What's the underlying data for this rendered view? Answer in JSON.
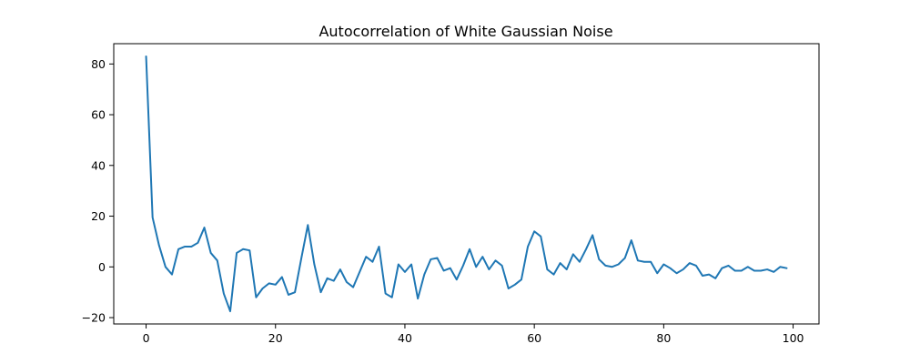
{
  "chart_data": {
    "type": "line",
    "title": "Autocorrelation of White Gaussian Noise",
    "xlabel": "",
    "ylabel": "",
    "xlim": [
      -5,
      104
    ],
    "ylim": [
      -22.5,
      88
    ],
    "xticks": [
      0,
      20,
      40,
      60,
      80,
      100
    ],
    "yticks": [
      -20,
      0,
      20,
      40,
      60,
      80
    ],
    "grid": false,
    "series": [
      {
        "color": "#1f77b4",
        "x": [
          0,
          1,
          2,
          3,
          4,
          5,
          6,
          7,
          8,
          9,
          10,
          11,
          12,
          13,
          14,
          15,
          16,
          17,
          18,
          19,
          20,
          21,
          22,
          23,
          24,
          25,
          26,
          27,
          28,
          29,
          30,
          31,
          32,
          33,
          34,
          35,
          36,
          37,
          38,
          39,
          40,
          41,
          42,
          43,
          44,
          45,
          46,
          47,
          48,
          49,
          50,
          51,
          52,
          53,
          54,
          55,
          56,
          57,
          58,
          59,
          60,
          61,
          62,
          63,
          64,
          65,
          66,
          67,
          68,
          69,
          70,
          71,
          72,
          73,
          74,
          75,
          76,
          77,
          78,
          79,
          80,
          81,
          82,
          83,
          84,
          85,
          86,
          87,
          88,
          89,
          90,
          91,
          92,
          93,
          94,
          95,
          96,
          97,
          98,
          99
        ],
        "values": [
          83,
          19.5,
          8.5,
          0,
          -3,
          7,
          8,
          8,
          9.5,
          15.5,
          5.5,
          2.5,
          -10.5,
          -17.5,
          5.5,
          7,
          6.5,
          -12,
          -8.5,
          -6.5,
          -7,
          -4,
          -11,
          -10,
          3.5,
          16.5,
          1,
          -10,
          -4.5,
          -5.5,
          -1,
          -6,
          -8,
          -2,
          4,
          2,
          8,
          -10.5,
          -12,
          1,
          -2,
          1,
          -12.5,
          -3,
          3,
          3.5,
          -1.5,
          -0.5,
          -5,
          0.5,
          7,
          0,
          4,
          -1,
          2.5,
          0.5,
          -8.5,
          -7,
          -5,
          8,
          14,
          12,
          -1,
          -3,
          1.5,
          -1,
          5,
          2,
          7,
          12.5,
          3,
          0.5,
          0,
          1,
          3.5,
          10.5,
          2.5,
          2,
          2,
          -2.5,
          1,
          -0.5,
          -2.5,
          -1,
          1.5,
          0.5,
          -3.5,
          -3,
          -4.5,
          -0.5,
          0.5,
          -1.5,
          -1.5,
          0,
          -1.5,
          -1.5,
          -1,
          -2,
          0,
          -0.5
        ]
      }
    ]
  }
}
